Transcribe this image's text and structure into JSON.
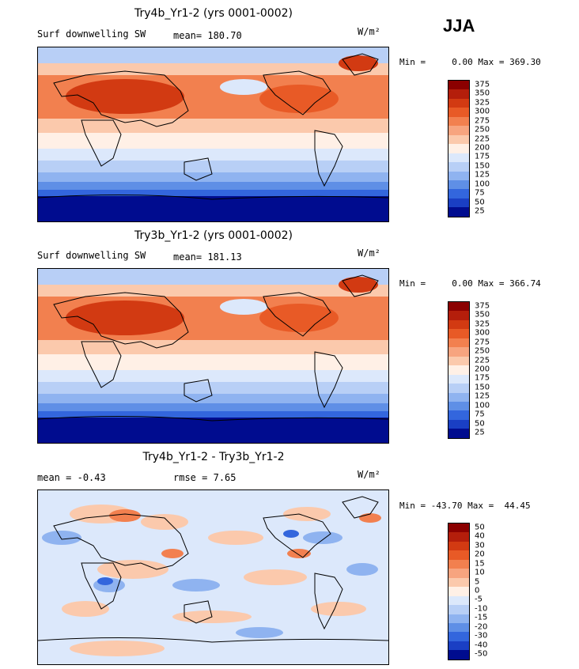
{
  "season": "JJA",
  "units": "W/m²",
  "panels": [
    {
      "title": "Try4b_Yr1-2 (yrs 0001-0002)",
      "variable": "Surf downwelling SW",
      "mean_label": "mean=",
      "mean": "180.70",
      "minmax": "Min =     0.00 Max = 369.30",
      "levels": [
        "375",
        "350",
        "325",
        "300",
        "275",
        "250",
        "225",
        "200",
        "175",
        "150",
        "125",
        "100",
        "75",
        "50",
        "25"
      ]
    },
    {
      "title": "Try3b_Yr1-2 (yrs 0001-0002)",
      "variable": "Surf downwelling SW",
      "mean_label": "mean=",
      "mean": "181.13",
      "minmax": "Min =     0.00 Max = 366.74",
      "levels": [
        "375",
        "350",
        "325",
        "300",
        "275",
        "250",
        "225",
        "200",
        "175",
        "150",
        "125",
        "100",
        "75",
        "50",
        "25"
      ]
    },
    {
      "title": "Try4b_Yr1-2 - Try3b_Yr1-2",
      "mean_label": "mean =",
      "mean": "-0.43",
      "rmse_label": "rmse =",
      "rmse": "7.65",
      "minmax": "Min = -43.70 Max =  44.45",
      "levels": [
        "50",
        "40",
        "30",
        "20",
        "15",
        "10",
        "5",
        "0",
        "-5",
        "-10",
        "-15",
        "-20",
        "-30",
        "-40",
        "-50"
      ]
    }
  ],
  "colors": {
    "scale": [
      "#8b0000",
      "#b41e0b",
      "#d23a12",
      "#e85a26",
      "#f2804f",
      "#f7a47f",
      "#fbc9ac",
      "#fff0e6",
      "#dce8fb",
      "#b8cff6",
      "#8fb3f0",
      "#5f8fe6",
      "#3366dd",
      "#1a3fc4",
      "#000c8f"
    ]
  }
}
